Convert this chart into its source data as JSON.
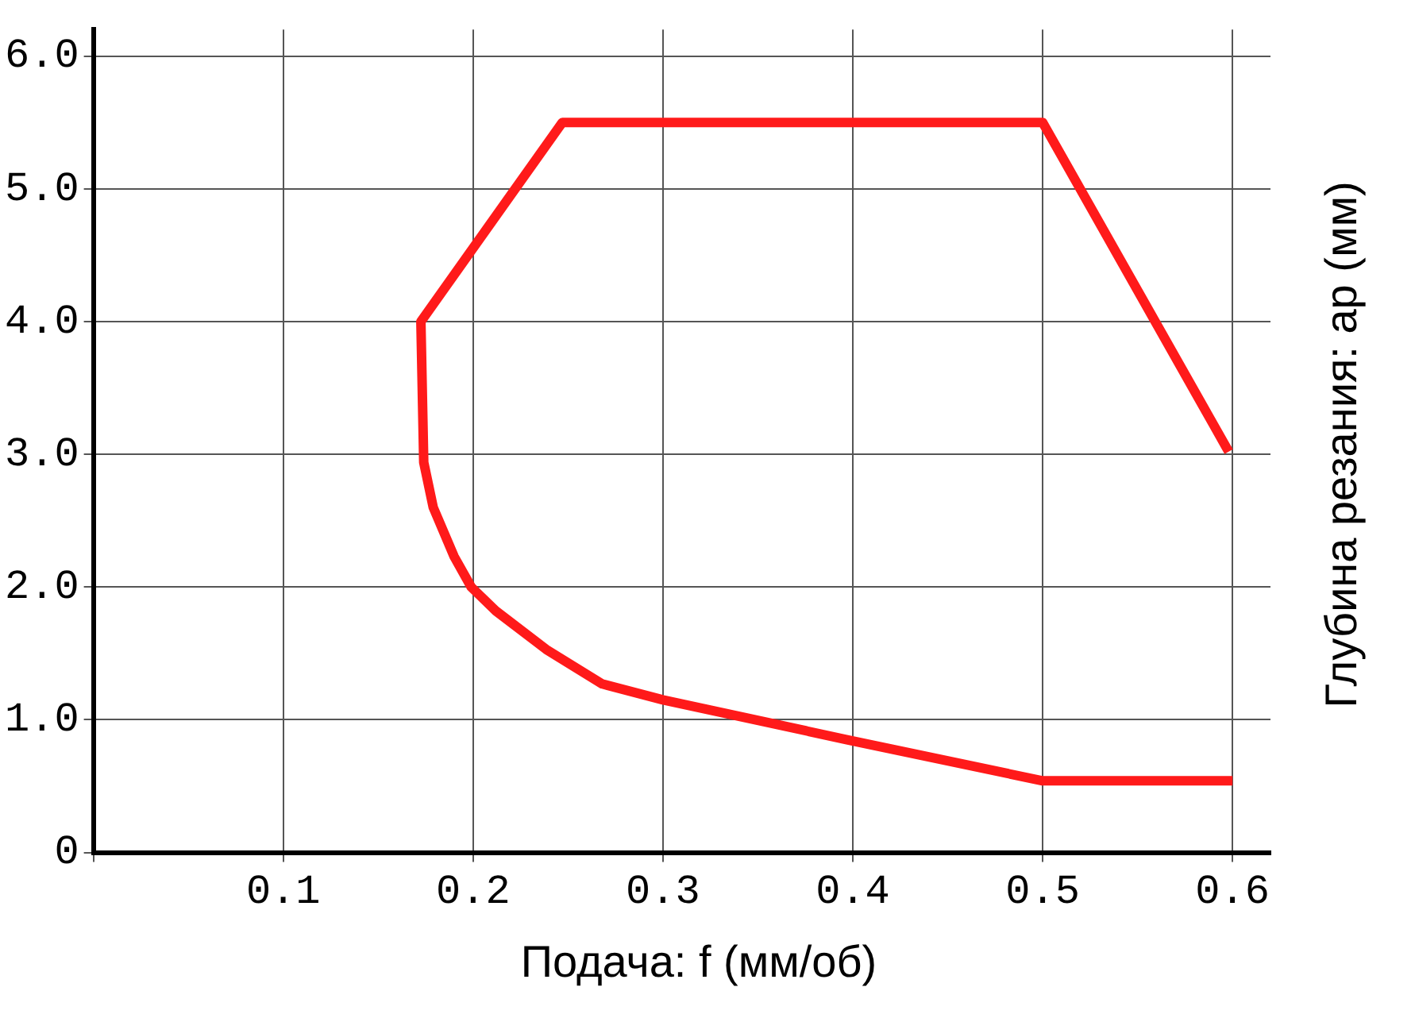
{
  "chart_data": {
    "type": "line",
    "xlabel": "Подача: f (мм/об)",
    "ylabel": "Глубина резания: ap (мм)",
    "series": [
      {
        "color": "#ff1a1a",
        "x": [
          0.598,
          0.5,
          0.247,
          0.1725,
          0.174,
          0.179,
          0.19,
          0.199,
          0.212,
          0.2385,
          0.268,
          0.3,
          0.397,
          0.5,
          0.6
        ],
        "values": [
          3.02,
          5.5,
          5.5,
          4.0,
          2.94,
          2.6,
          2.23,
          2.0,
          1.82,
          1.53,
          1.27,
          1.15,
          0.85,
          0.54,
          0.54
        ]
      }
    ],
    "xlim": [
      0,
      0.62
    ],
    "ylim": [
      0,
      6.2
    ],
    "xticks": [
      {
        "value": 0,
        "label": null
      },
      0.1,
      0.2,
      0.3,
      0.4,
      0.5,
      0.6
    ],
    "yticks": [
      0,
      {
        "value": 1,
        "label": "1.0"
      },
      {
        "value": 2,
        "label": "2.0"
      },
      {
        "value": 3,
        "label": "3.0"
      },
      {
        "value": 4,
        "label": "4.0"
      },
      {
        "value": 5,
        "label": "5.0"
      },
      {
        "value": 6,
        "label": "6.0"
      }
    ],
    "grid": true,
    "legend": false,
    "marker": "none",
    "line_style": "solid"
  }
}
